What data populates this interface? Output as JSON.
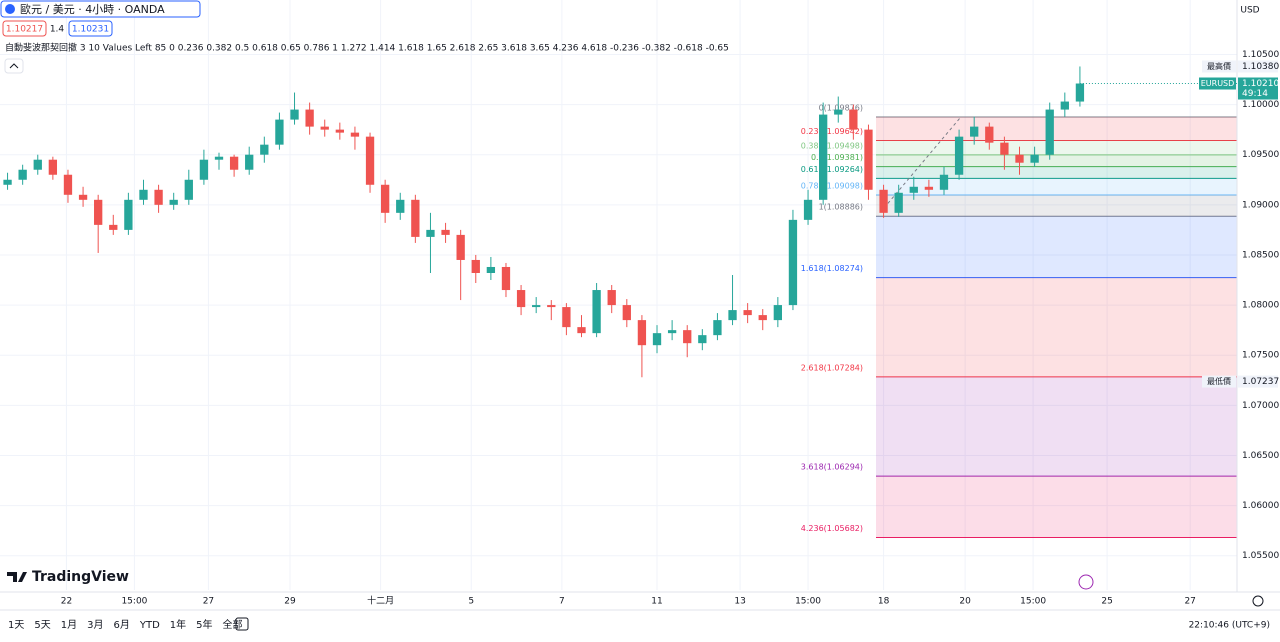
{
  "header": {
    "symbol": "歐元 / 美元 · 4小時 · OANDA",
    "bid": "1.10217",
    "spread": "1.4",
    "ask": "1.10231"
  },
  "indicator": "自動斐波那契回撤 3 10 Values Left 85 0 0.236 0.382 0.5 0.618 0.65 0.786 1 1.272 1.414 1.618 1.65 2.618 2.65 3.618 3.65 4.236 4.618 -0.236 -0.382 -0.618 -0.65",
  "currency": "USD",
  "logo": "TradingView",
  "timeframes": [
    "1天",
    "5天",
    "1月",
    "3月",
    "6月",
    "YTD",
    "1年",
    "5年",
    "全部"
  ],
  "clock": "22:10:46 (UTC+9)",
  "chart_data": {
    "type": "candlestick",
    "up_color": "#26a69a",
    "down_color": "#ef5350",
    "ohlc": [
      [
        1.092,
        1.0932,
        1.0915,
        1.0925
      ],
      [
        1.0925,
        1.094,
        1.092,
        1.0935
      ],
      [
        1.0935,
        1.095,
        1.093,
        1.0945
      ],
      [
        1.0945,
        1.0948,
        1.0925,
        1.093
      ],
      [
        1.093,
        1.0935,
        1.0902,
        1.091
      ],
      [
        1.091,
        1.0918,
        1.0898,
        1.0905
      ],
      [
        1.0905,
        1.091,
        1.0852,
        1.088
      ],
      [
        1.088,
        1.089,
        1.087,
        1.0875
      ],
      [
        1.0875,
        1.0912,
        1.087,
        1.0905
      ],
      [
        1.0905,
        1.0925,
        1.09,
        1.0915
      ],
      [
        1.0915,
        1.092,
        1.0892,
        1.09
      ],
      [
        1.09,
        1.0912,
        1.0895,
        1.0905
      ],
      [
        1.0905,
        1.0935,
        1.09,
        1.0925
      ],
      [
        1.0925,
        1.0955,
        1.092,
        1.0945
      ],
      [
        1.0945,
        1.0952,
        1.0935,
        1.0948
      ],
      [
        1.0948,
        1.095,
        1.0928,
        1.0935
      ],
      [
        1.0935,
        1.0958,
        1.093,
        1.095
      ],
      [
        1.095,
        1.0968,
        1.0942,
        1.096
      ],
      [
        1.096,
        1.0992,
        1.0955,
        1.0985
      ],
      [
        1.0985,
        1.1012,
        1.098,
        1.0995
      ],
      [
        1.0995,
        1.1002,
        1.097,
        1.0978
      ],
      [
        1.0978,
        1.0985,
        1.0968,
        1.0975
      ],
      [
        1.0975,
        1.0982,
        1.0965,
        1.0972
      ],
      [
        1.0972,
        1.0978,
        1.0955,
        1.0968
      ],
      [
        1.0968,
        1.0972,
        1.0912,
        1.092
      ],
      [
        1.092,
        1.0925,
        1.0882,
        1.0892
      ],
      [
        1.0892,
        1.0912,
        1.0885,
        1.0905
      ],
      [
        1.0905,
        1.091,
        1.0862,
        1.0868
      ],
      [
        1.0868,
        1.0892,
        1.0832,
        1.0875
      ],
      [
        1.0875,
        1.0882,
        1.0862,
        1.087
      ],
      [
        1.087,
        1.0875,
        1.0805,
        1.0845
      ],
      [
        1.0845,
        1.085,
        1.0822,
        1.0832
      ],
      [
        1.0832,
        1.0848,
        1.0825,
        1.0838
      ],
      [
        1.0838,
        1.0842,
        1.0808,
        1.0815
      ],
      [
        1.0815,
        1.082,
        1.079,
        1.0798
      ],
      [
        1.0798,
        1.0808,
        1.0792,
        1.08
      ],
      [
        1.08,
        1.0805,
        1.0785,
        1.0798
      ],
      [
        1.0798,
        1.0802,
        1.077,
        1.0778
      ],
      [
        1.0778,
        1.079,
        1.0768,
        1.0772
      ],
      [
        1.0772,
        1.0822,
        1.0768,
        1.0815
      ],
      [
        1.0815,
        1.082,
        1.0792,
        1.08
      ],
      [
        1.08,
        1.0806,
        1.0778,
        1.0785
      ],
      [
        1.0785,
        1.079,
        1.0728,
        1.076
      ],
      [
        1.076,
        1.078,
        1.0752,
        1.0772
      ],
      [
        1.0772,
        1.0785,
        1.0765,
        1.0775
      ],
      [
        1.0775,
        1.078,
        1.0748,
        1.0762
      ],
      [
        1.0762,
        1.0776,
        1.0755,
        1.077
      ],
      [
        1.077,
        1.0792,
        1.0765,
        1.0785
      ],
      [
        1.0785,
        1.083,
        1.078,
        1.0795
      ],
      [
        1.0795,
        1.0802,
        1.0782,
        1.079
      ],
      [
        1.079,
        1.0796,
        1.0775,
        1.0785
      ],
      [
        1.0785,
        1.0808,
        1.0778,
        1.08
      ],
      [
        1.08,
        1.0895,
        1.0795,
        1.0885
      ],
      [
        1.0885,
        1.0915,
        1.088,
        1.0905
      ],
      [
        1.0905,
        1.1002,
        1.09,
        1.099
      ],
      [
        1.099,
        1.1008,
        1.0982,
        1.0995
      ],
      [
        1.0995,
        1.1,
        1.0965,
        1.0975
      ],
      [
        1.0975,
        1.098,
        1.0905,
        1.0915
      ],
      [
        1.0915,
        1.092,
        1.0887,
        1.0892
      ],
      [
        1.0892,
        1.092,
        1.0888,
        1.0912
      ],
      [
        1.0912,
        1.0928,
        1.0905,
        1.0918
      ],
      [
        1.0918,
        1.0925,
        1.0908,
        1.0915
      ],
      [
        1.0915,
        1.0938,
        1.091,
        1.093
      ],
      [
        1.093,
        1.0975,
        1.0925,
        1.0968
      ],
      [
        1.0968,
        1.0988,
        1.096,
        1.0978
      ],
      [
        1.0978,
        1.0982,
        1.0955,
        1.0962
      ],
      [
        1.0962,
        1.0968,
        1.0935,
        1.095
      ],
      [
        1.095,
        1.0958,
        1.093,
        1.0942
      ],
      [
        1.0942,
        1.0958,
        1.0938,
        1.095
      ],
      [
        1.095,
        1.1002,
        1.0945,
        1.0995
      ],
      [
        1.0995,
        1.1012,
        1.0988,
        1.1003
      ],
      [
        1.1003,
        1.1038,
        1.0998,
        1.1021
      ]
    ],
    "xlim": [
      -0.5,
      81.4
    ],
    "xticks": [
      {
        "value": 3.9,
        "label": "22"
      },
      {
        "value": 8.4,
        "label": "15:00"
      },
      {
        "value": 13.3,
        "label": "27"
      },
      {
        "value": 18.7,
        "label": "29"
      },
      {
        "value": 24.7,
        "label": "十二月"
      },
      {
        "value": 30.7,
        "label": "5"
      },
      {
        "value": 36.7,
        "label": "7"
      },
      {
        "value": 43.0,
        "label": "11"
      },
      {
        "value": 48.5,
        "label": "13"
      },
      {
        "value": 53.0,
        "label": "15:00"
      },
      {
        "value": 58.0,
        "label": "18"
      },
      {
        "value": 63.4,
        "label": "20"
      },
      {
        "value": 67.9,
        "label": "15:00"
      },
      {
        "value": 72.8,
        "label": "25"
      },
      {
        "value": 78.3,
        "label": "27"
      }
    ],
    "ylim": [
      1.05158,
      1.11043
    ],
    "yticks": [
      {
        "value": 1.105,
        "label": "1.10500"
      },
      {
        "value": 1.1,
        "label": "1.10000"
      },
      {
        "value": 1.095,
        "label": "1.09500"
      },
      {
        "value": 1.09,
        "label": "1.09000"
      },
      {
        "value": 1.085,
        "label": "1.08500"
      },
      {
        "value": 1.08,
        "label": "1.08000"
      },
      {
        "value": 1.075,
        "label": "1.07500"
      },
      {
        "value": 1.07,
        "label": "1.07000"
      },
      {
        "value": 1.065,
        "label": "1.06500"
      },
      {
        "value": 1.06,
        "label": "1.06000"
      },
      {
        "value": 1.055,
        "label": "1.05500"
      }
    ],
    "fib": [
      {
        "label": "0(1.09876)",
        "value": 1.09876,
        "color": "#787b86"
      },
      {
        "label": "0.236(1.09642)",
        "value": 1.09642,
        "color": "#f23645"
      },
      {
        "label": "0.382(1.09498)",
        "value": 1.09498,
        "color": "#81c784"
      },
      {
        "label": "0.5(1.09381)",
        "value": 1.09381,
        "color": "#4caf50"
      },
      {
        "label": "0.618(1.09264)",
        "value": 1.09264,
        "color": "#089981"
      },
      {
        "label": "0.786(1.09098)",
        "value": 1.09098,
        "color": "#64b5f6"
      },
      {
        "label": "1(1.08886)",
        "value": 1.08886,
        "color": "#787b86"
      },
      {
        "label": "1.618(1.08274)",
        "value": 1.08274,
        "color": "#2962ff"
      },
      {
        "label": "2.618(1.07284)",
        "value": 1.07284,
        "color": "#f23645"
      },
      {
        "label": "3.618(1.06294)",
        "value": 1.06294,
        "color": "#9c27b0"
      },
      {
        "label": "4.236(1.05682)",
        "value": 1.05682,
        "color": "#e91e63"
      }
    ],
    "high": {
      "label": "最高價",
      "value": 1.1038,
      "value_label": "1.10380"
    },
    "last": {
      "name": "EURUSD",
      "value": 1.1021,
      "value_label": "1.10210",
      "countdown": "49:14"
    },
    "low": {
      "label": "最低價",
      "value": 1.07237,
      "value_label": "1.07237"
    }
  }
}
